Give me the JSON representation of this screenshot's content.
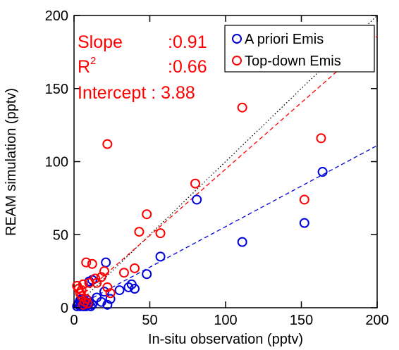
{
  "chart_data": {
    "type": "scatter",
    "title": "",
    "xlabel": "In-situ observation (pptv)",
    "ylabel": "REAM simulation (pptv)",
    "xlim": [
      0,
      200
    ],
    "ylim": [
      0,
      200
    ],
    "xticks": [
      "0",
      "50",
      "100",
      "150",
      "200"
    ],
    "yticks": [
      "0",
      "50",
      "100",
      "150",
      "200"
    ],
    "grid": false,
    "legend_position": "top-right",
    "one_to_one_line": {
      "color": "#000000",
      "style": "dotted"
    },
    "stats": {
      "color": "#ff0000",
      "slope_label": "Slope",
      "slope_value": ":0.91",
      "r2_label": "R",
      "r2_sup": "2",
      "r2_value": ":0.66",
      "intercept_text": "Intercept : 3.88"
    },
    "series": [
      {
        "name": "A priori Emis",
        "color": "#0000dd",
        "fit": {
          "slope": 0.555,
          "intercept": 0
        },
        "points": [
          [
            2,
            1
          ],
          [
            3,
            2
          ],
          [
            4,
            1
          ],
          [
            5,
            3
          ],
          [
            6,
            2
          ],
          [
            7,
            1
          ],
          [
            8,
            4
          ],
          [
            9,
            2
          ],
          [
            10,
            3
          ],
          [
            4,
            5
          ],
          [
            5,
            6
          ],
          [
            6,
            4
          ],
          [
            7,
            3
          ],
          [
            3,
            3
          ],
          [
            11,
            1
          ],
          [
            12,
            2
          ],
          [
            8,
            1
          ],
          [
            6,
            1
          ],
          [
            9,
            5
          ],
          [
            10,
            18
          ],
          [
            12,
            19
          ],
          [
            15,
            7
          ],
          [
            18,
            4
          ],
          [
            20,
            11
          ],
          [
            22,
            2
          ],
          [
            24,
            6
          ],
          [
            21,
            31
          ],
          [
            30,
            12
          ],
          [
            36,
            14
          ],
          [
            38,
            16
          ],
          [
            40,
            13
          ],
          [
            48,
            23
          ],
          [
            57,
            35
          ],
          [
            81,
            74
          ],
          [
            111,
            45
          ],
          [
            152,
            58
          ],
          [
            164,
            93
          ]
        ]
      },
      {
        "name": "Top-down Emis",
        "color": "#ff0000",
        "fit": {
          "slope": 0.91,
          "intercept": 3.88
        },
        "points": [
          [
            2,
            15
          ],
          [
            3,
            13
          ],
          [
            4,
            10
          ],
          [
            5,
            8
          ],
          [
            5,
            12
          ],
          [
            6,
            16
          ],
          [
            7,
            4
          ],
          [
            8,
            6
          ],
          [
            9,
            3
          ],
          [
            6,
            2
          ],
          [
            8,
            31
          ],
          [
            10,
            17
          ],
          [
            12,
            30
          ],
          [
            14,
            20
          ],
          [
            15,
            17
          ],
          [
            18,
            21
          ],
          [
            20,
            25
          ],
          [
            22,
            112
          ],
          [
            22,
            14
          ],
          [
            24,
            10
          ],
          [
            33,
            24
          ],
          [
            40,
            27
          ],
          [
            43,
            52
          ],
          [
            48,
            64
          ],
          [
            57,
            51
          ],
          [
            80,
            85
          ],
          [
            111,
            137
          ],
          [
            152,
            74
          ],
          [
            163,
            116
          ]
        ]
      }
    ]
  }
}
